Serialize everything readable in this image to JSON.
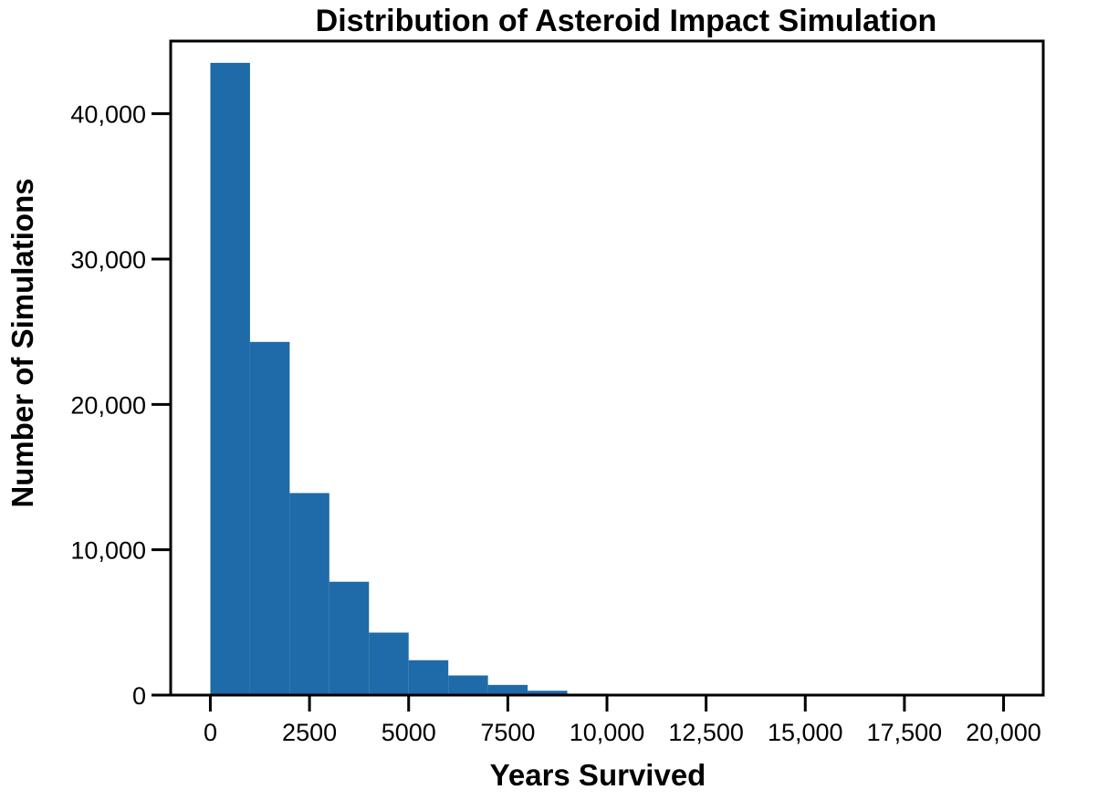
{
  "chart_data": {
    "type": "bar",
    "title": "Distribution of Asteroid Impact Simulation",
    "xlabel": "Years Survived",
    "ylabel": "Number of Simulations",
    "xlim": [
      -1000,
      21000
    ],
    "ylim": [
      0,
      45000
    ],
    "x_ticks": [
      0,
      2500,
      5000,
      7500,
      10000,
      12500,
      15000,
      17500,
      20000
    ],
    "x_tick_labels": [
      "0",
      "2500",
      "5000",
      "7500",
      "10,000",
      "12,500",
      "15,000",
      "17,500",
      "20,000"
    ],
    "y_ticks": [
      0,
      10000,
      20000,
      30000,
      40000
    ],
    "y_tick_labels": [
      "0",
      "10,000",
      "20,000",
      "30,000",
      "40,000"
    ],
    "bar_color": "#1f6aa8",
    "grid": false,
    "bins": [
      {
        "start": 0,
        "end": 1000,
        "count": 43500
      },
      {
        "start": 1000,
        "end": 2000,
        "count": 24300
      },
      {
        "start": 2000,
        "end": 3000,
        "count": 13900
      },
      {
        "start": 3000,
        "end": 4000,
        "count": 7800
      },
      {
        "start": 4000,
        "end": 5000,
        "count": 4300
      },
      {
        "start": 5000,
        "end": 6000,
        "count": 2400
      },
      {
        "start": 6000,
        "end": 7000,
        "count": 1350
      },
      {
        "start": 7000,
        "end": 8000,
        "count": 700
      },
      {
        "start": 8000,
        "end": 9000,
        "count": 300
      },
      {
        "start": 9000,
        "end": 10000,
        "count": 100
      },
      {
        "start": 10000,
        "end": 11000,
        "count": 40
      },
      {
        "start": 11000,
        "end": 12000,
        "count": 20
      }
    ]
  }
}
